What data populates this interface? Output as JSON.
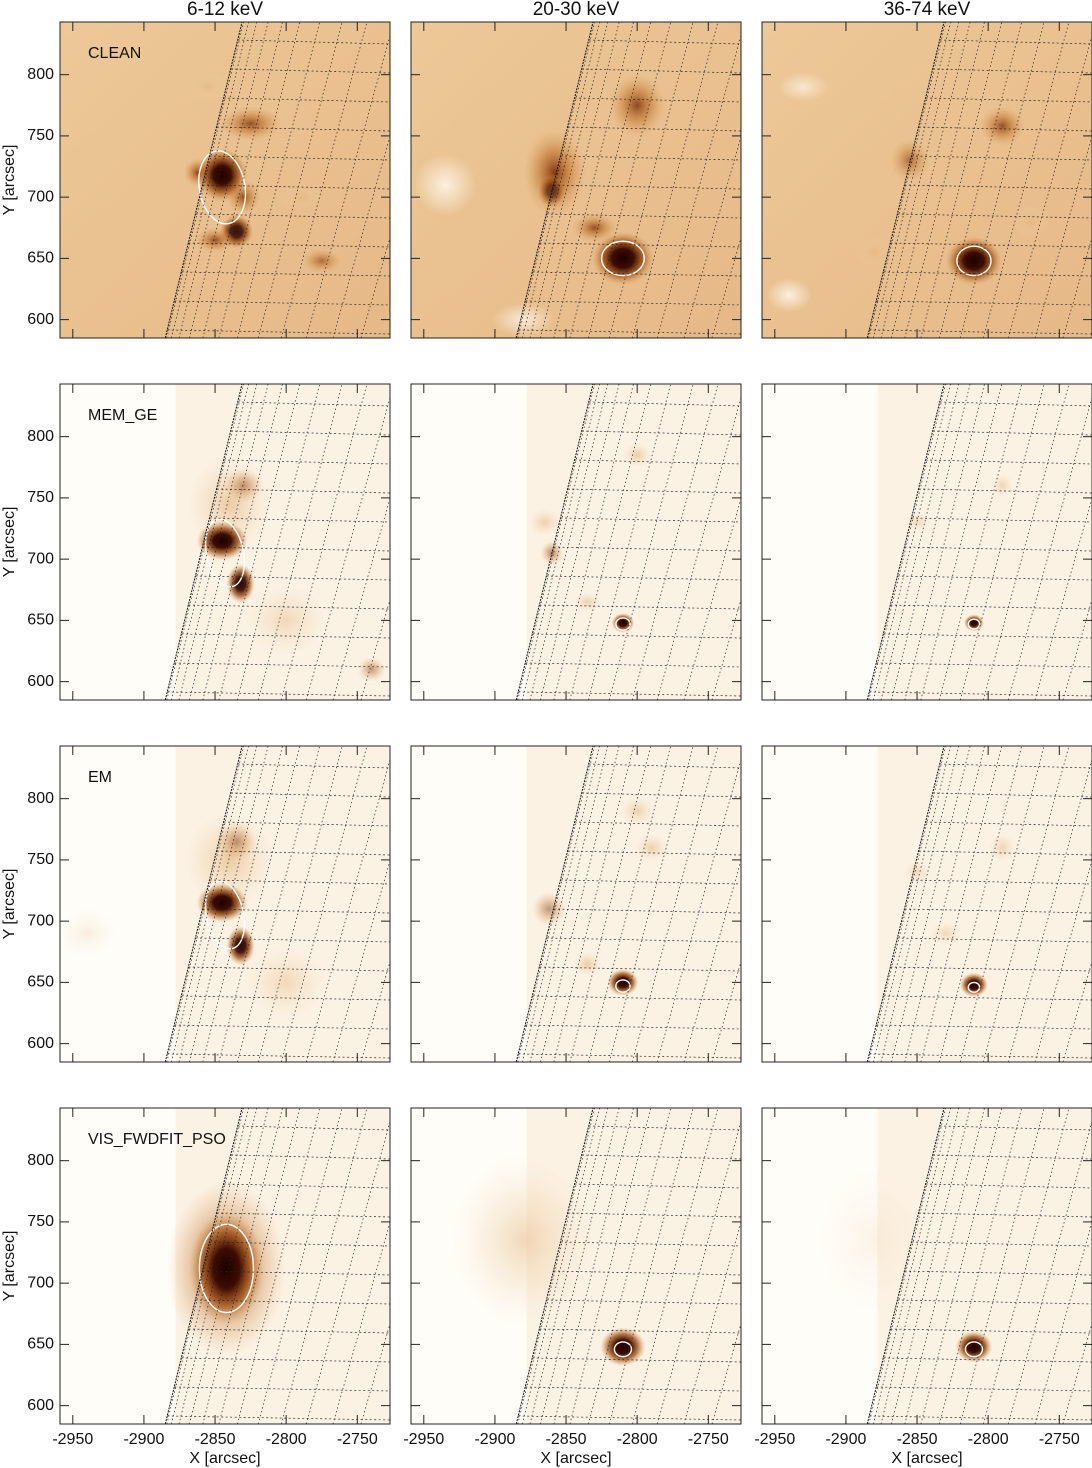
{
  "figure": {
    "column_titles": [
      "6-12 keV",
      "20-30 keV",
      "36-74 keV"
    ],
    "row_labels": [
      "CLEAN",
      "MEM_GE",
      "EM",
      "VIS_FWDFIT_PSO"
    ],
    "x_label": "X [arcsec]",
    "y_label": "Y [arcsec]",
    "xlim": [
      -2959,
      -2727
    ],
    "ylim": [
      585,
      843
    ],
    "xticks": [
      -2950,
      -2900,
      -2850,
      -2800,
      -2750
    ],
    "yticks": [
      600,
      650,
      700,
      750,
      800
    ]
  }
}
